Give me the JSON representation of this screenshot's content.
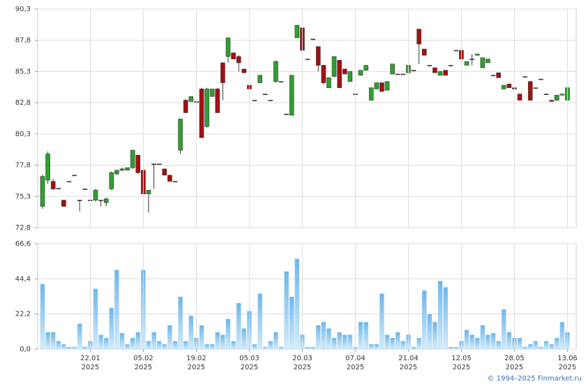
{
  "chart_data": [
    {
      "type": "candlestick",
      "open": [
        74.5,
        76.6,
        76.5,
        75.95,
        75.0,
        76.5,
        77.0,
        75.0,
        75.9,
        75.0,
        75.0,
        75.0,
        74.8,
        75.9,
        77.1,
        77.4,
        77.4,
        77.6,
        78.6,
        77.4,
        75.5,
        77.9,
        77.9,
        77.5,
        77.0,
        76.5,
        79.0,
        83.0,
        82.9,
        82.9,
        83.9,
        80.9,
        83.3,
        83.9,
        86.0,
        86.5,
        86.8,
        86.5,
        85.5,
        84.2,
        83.0,
        84.4,
        83.5,
        83.0,
        84.5,
        84.5,
        81.9,
        81.8,
        88.0,
        88.8,
        86.3,
        87.9,
        87.3,
        85.8,
        84.0,
        84.9,
        86.2,
        85.5,
        84.5,
        83.5,
        85.0,
        85.4,
        83.0,
        83.9,
        84.4,
        83.8,
        85.1,
        85.1,
        85.1,
        85.2,
        85.4,
        88.7,
        87.1,
        85.8,
        85.6,
        85.0,
        85.4,
        85.8,
        87.0,
        87.0,
        85.8,
        86.3,
        86.6,
        85.6,
        86.0,
        85.0,
        85.2,
        83.9,
        84.3,
        84.0,
        83.5,
        84.9,
        84.5,
        84.0,
        84.7,
        83.5,
        83.0,
        83.0,
        83.4,
        83.0
      ],
      "high": [
        77.05,
        78.9,
        76.7,
        75.95,
        75.0,
        76.5,
        77.0,
        75.0,
        75.9,
        75.0,
        75.9,
        75.0,
        75.2,
        77.3,
        77.4,
        77.6,
        77.6,
        79.0,
        78.6,
        77.4,
        75.8,
        77.9,
        77.9,
        77.5,
        77.0,
        76.5,
        81.5,
        83.1,
        83.3,
        82.9,
        84.0,
        84.0,
        83.9,
        84.0,
        86.0,
        88.0,
        86.8,
        86.6,
        85.5,
        84.2,
        83.0,
        85.0,
        83.5,
        83.0,
        86.2,
        84.5,
        81.9,
        85.0,
        89.0,
        88.8,
        86.3,
        87.9,
        87.3,
        85.8,
        84.8,
        86.5,
        86.2,
        85.5,
        85.3,
        83.5,
        85.4,
        85.8,
        84.0,
        84.4,
        84.4,
        84.5,
        85.9,
        85.1,
        85.1,
        85.8,
        85.4,
        88.7,
        87.1,
        85.8,
        85.6,
        85.3,
        85.4,
        85.8,
        87.0,
        87.0,
        86.1,
        86.7,
        86.7,
        86.4,
        86.3,
        85.0,
        85.2,
        84.2,
        84.3,
        84.0,
        83.5,
        84.9,
        84.5,
        84.0,
        84.7,
        83.5,
        83.0,
        83.4,
        83.5,
        84.0
      ],
      "low": [
        74.3,
        76.3,
        75.8,
        75.95,
        74.5,
        76.5,
        77.0,
        74.1,
        75.9,
        75.0,
        74.9,
        74.5,
        74.5,
        75.8,
        77.0,
        77.3,
        77.4,
        77.5,
        77.1,
        75.5,
        74.0,
        75.9,
        77.9,
        77.0,
        76.5,
        76.5,
        78.7,
        82.0,
        82.9,
        82.9,
        80.0,
        80.8,
        83.3,
        82.0,
        83.0,
        86.0,
        86.3,
        85.3,
        85.2,
        83.9,
        83.0,
        84.4,
        83.5,
        83.0,
        84.4,
        84.5,
        81.9,
        81.8,
        88.0,
        87.0,
        86.3,
        87.9,
        85.3,
        84.3,
        84.0,
        84.9,
        84.0,
        85.1,
        84.5,
        83.5,
        85.0,
        85.4,
        83.0,
        83.9,
        83.7,
        83.8,
        85.1,
        85.1,
        85.1,
        85.2,
        85.4,
        85.9,
        86.6,
        85.8,
        85.2,
        85.0,
        85.0,
        85.8,
        87.0,
        86.3,
        85.8,
        85.8,
        86.6,
        85.6,
        86.0,
        85.0,
        84.8,
        83.9,
        84.0,
        83.9,
        83.0,
        84.9,
        83.0,
        84.0,
        84.7,
        83.5,
        82.9,
        83.0,
        83.4,
        83.0
      ],
      "close": [
        76.9,
        78.7,
        75.9,
        75.95,
        74.5,
        76.5,
        77.0,
        75.0,
        75.9,
        75.0,
        75.8,
        75.0,
        75.1,
        77.2,
        77.4,
        77.5,
        77.6,
        79.0,
        77.2,
        75.5,
        75.8,
        77.9,
        77.9,
        77.0,
        76.5,
        76.5,
        81.5,
        82.0,
        83.3,
        82.9,
        80.0,
        83.9,
        83.9,
        82.0,
        84.4,
        88.0,
        86.3,
        86.0,
        85.2,
        83.9,
        83.0,
        85.0,
        83.5,
        83.0,
        86.1,
        84.5,
        81.9,
        85.0,
        89.0,
        87.0,
        86.3,
        87.9,
        85.8,
        84.4,
        84.8,
        86.5,
        84.0,
        85.1,
        85.3,
        83.5,
        85.4,
        85.8,
        84.0,
        84.4,
        83.7,
        84.5,
        85.9,
        85.1,
        85.1,
        85.8,
        85.4,
        87.5,
        86.6,
        85.8,
        85.2,
        85.3,
        85.0,
        85.8,
        87.0,
        86.3,
        86.1,
        86.3,
        86.7,
        86.4,
        86.3,
        85.0,
        84.8,
        84.2,
        84.0,
        83.9,
        83.0,
        84.9,
        83.0,
        84.0,
        84.7,
        83.5,
        82.9,
        83.4,
        83.5,
        84.0
      ],
      "up_color": "#2ea12e",
      "down_color": "#a31010",
      "ylim": [
        72.8,
        90.3
      ],
      "yticks": [
        {
          "value": 72.8,
          "label": "72,8"
        },
        {
          "value": 75.3,
          "label": "75,3"
        },
        {
          "value": 77.8,
          "label": "77,8"
        },
        {
          "value": 80.3,
          "label": "80,3"
        },
        {
          "value": 82.8,
          "label": "82,8"
        },
        {
          "value": 85.3,
          "label": "85,3"
        },
        {
          "value": 87.8,
          "label": "87,8"
        },
        {
          "value": 90.3,
          "label": "90,3"
        }
      ],
      "grid": true
    },
    {
      "type": "bar",
      "categories": [
        null,
        null,
        null,
        null,
        null,
        null,
        null,
        null,
        null,
        "22.01",
        null,
        null,
        null,
        null,
        null,
        null,
        null,
        null,
        null,
        "05.02",
        null,
        null,
        null,
        null,
        null,
        null,
        null,
        null,
        null,
        "19.02",
        null,
        null,
        null,
        null,
        null,
        null,
        null,
        null,
        null,
        "05.03",
        null,
        null,
        null,
        null,
        null,
        null,
        null,
        null,
        null,
        "20.03",
        null,
        null,
        null,
        null,
        null,
        null,
        null,
        null,
        null,
        "07.04",
        null,
        null,
        null,
        null,
        null,
        null,
        null,
        null,
        null,
        "21.04",
        null,
        null,
        null,
        null,
        null,
        null,
        null,
        null,
        null,
        "12.05",
        null,
        null,
        null,
        null,
        null,
        null,
        null,
        null,
        null,
        "28.05",
        null,
        null,
        null,
        null,
        null,
        null,
        null,
        null,
        null,
        "13.06"
      ],
      "x_year": "2025",
      "values": [
        41,
        10.6,
        10.6,
        5,
        3,
        1.3,
        1.3,
        16,
        1.3,
        5,
        38,
        9,
        7,
        26,
        50,
        10,
        3,
        7,
        10.6,
        50,
        5,
        10.6,
        5,
        3,
        15,
        5,
        33,
        5,
        21,
        7,
        15,
        3,
        3,
        10.6,
        9,
        19,
        5,
        29,
        13,
        24,
        3,
        35,
        1.3,
        5,
        10.6,
        1.3,
        49,
        33,
        57,
        9,
        1.3,
        1.3,
        15,
        17,
        13,
        7,
        10.6,
        9,
        9,
        1.3,
        17,
        17,
        3,
        3,
        35,
        9,
        7,
        10.6,
        5,
        9,
        1.3,
        7,
        37,
        22,
        17,
        43,
        39,
        1.3,
        1.3,
        5,
        12,
        9,
        7,
        15,
        9,
        10,
        5,
        25,
        10.6,
        7,
        7,
        1.3,
        3,
        5,
        1.3,
        5,
        3,
        7,
        17,
        10.6
      ],
      "color": "#7fc1ef",
      "ylim": [
        0,
        66.6
      ],
      "yticks": [
        {
          "value": 0,
          "label": "0,0"
        },
        {
          "value": 22.2,
          "label": "22,2"
        },
        {
          "value": 44.4,
          "label": "44,4"
        },
        {
          "value": 66.6,
          "label": "66,6"
        }
      ],
      "grid": true
    }
  ],
  "footer": "© 1994–2025 Finmarket.ru"
}
